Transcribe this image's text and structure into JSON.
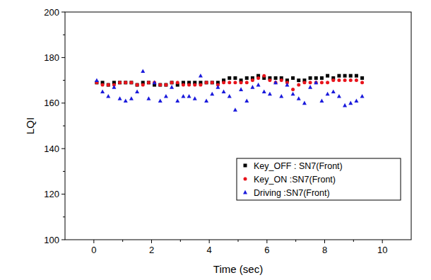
{
  "chart_data": {
    "type": "scatter",
    "x_label": "Time (sec)",
    "y_label": "LQI",
    "xlim": [
      -1,
      11
    ],
    "xticks": [
      0,
      2,
      4,
      6,
      8,
      10
    ],
    "ylim": [
      100,
      200
    ],
    "yticks": [
      100,
      120,
      140,
      160,
      180,
      200
    ],
    "legend": "lower right",
    "x": [
      0.1,
      0.3,
      0.5,
      0.7,
      0.9,
      1.1,
      1.3,
      1.5,
      1.7,
      1.9,
      2.1,
      2.3,
      2.5,
      2.7,
      2.9,
      3.1,
      3.3,
      3.5,
      3.7,
      3.9,
      4.1,
      4.3,
      4.5,
      4.7,
      4.9,
      5.1,
      5.3,
      5.5,
      5.7,
      5.9,
      6.1,
      6.3,
      6.5,
      6.7,
      6.9,
      7.1,
      7.3,
      7.5,
      7.7,
      7.9,
      8.1,
      8.3,
      8.5,
      8.7,
      8.9,
      9.1,
      9.3
    ],
    "series": [
      {
        "name": "Key_OFF : SN7(Front)",
        "color": "#000000",
        "marker": "square",
        "values": [
          169,
          169,
          168,
          169,
          169,
          169,
          169,
          168,
          169,
          169,
          168,
          168,
          168,
          169,
          168,
          169,
          169,
          169,
          169,
          169,
          169,
          169,
          170,
          171,
          171,
          170,
          171,
          171,
          172,
          171,
          171,
          171,
          171,
          170,
          171,
          170,
          170,
          171,
          171,
          171,
          172,
          171,
          172,
          172,
          172,
          172,
          171
        ]
      },
      {
        "name": "Key_ON :SN7(Front)",
        "color": "#e8141c",
        "marker": "circle",
        "values": [
          169,
          168,
          168,
          168,
          169,
          169,
          169,
          168,
          168,
          169,
          169,
          168,
          168,
          169,
          169,
          168,
          168,
          168,
          168,
          169,
          169,
          168,
          169,
          169,
          169,
          169,
          169,
          170,
          171,
          172,
          170,
          169,
          170,
          169,
          166,
          168,
          169,
          169,
          169,
          169,
          169,
          170,
          170,
          170,
          170,
          170,
          169
        ]
      },
      {
        "name": "Driving :SN7(Front)",
        "color": "#1a1adc",
        "marker": "triangle",
        "values": [
          170,
          165,
          163,
          167,
          162,
          161,
          162,
          165,
          174,
          162,
          169,
          161,
          163,
          167,
          161,
          163,
          163,
          162,
          172,
          161,
          164,
          167,
          165,
          163,
          157,
          166,
          161,
          167,
          168,
          165,
          164,
          169,
          163,
          168,
          164,
          162,
          160,
          167,
          169,
          161,
          164,
          165,
          163,
          159,
          160,
          161,
          163
        ]
      }
    ]
  }
}
